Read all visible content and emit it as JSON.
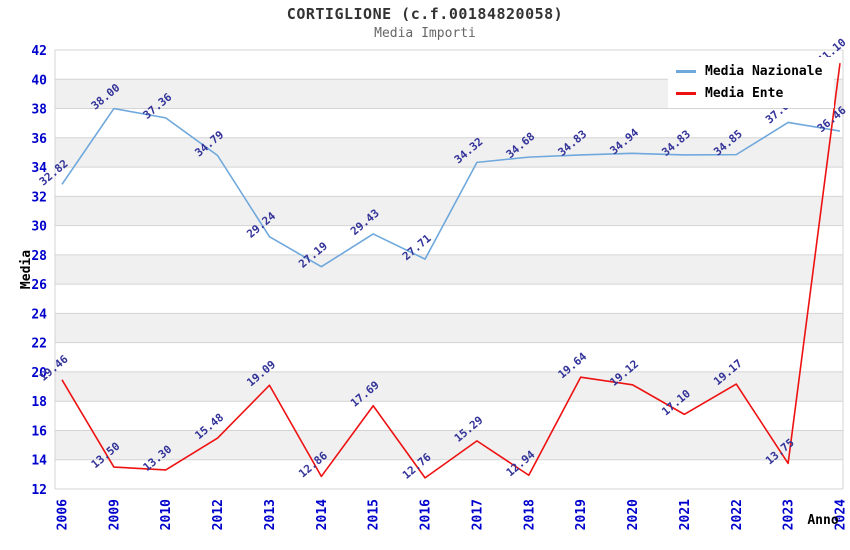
{
  "title": "CORTIGLIONE (c.f.00184820058)",
  "subtitle": "Media Importi",
  "chart_data": {
    "type": "line",
    "title": "CORTIGLIONE (c.f.00184820058)",
    "subtitle": "Media Importi",
    "xlabel": "Anno",
    "ylabel": "Media",
    "ylim": [
      12,
      42
    ],
    "ytick_step": 2,
    "yticks": [
      12,
      14,
      16,
      18,
      20,
      22,
      24,
      26,
      28,
      30,
      32,
      34,
      36,
      38,
      40,
      42
    ],
    "grid": true,
    "legend_position": "top-right",
    "categories": [
      "2006",
      "2009",
      "2010",
      "2012",
      "2013",
      "2014",
      "2015",
      "2016",
      "2017",
      "2018",
      "2019",
      "2020",
      "2021",
      "2022",
      "2023",
      "2024"
    ],
    "series": [
      {
        "name": "Media Nazionale",
        "color": "#6fa8dc",
        "values": [
          32.82,
          38.0,
          37.36,
          34.79,
          29.24,
          27.19,
          29.43,
          27.71,
          34.32,
          34.68,
          34.83,
          34.94,
          34.83,
          34.85,
          37.05,
          36.46
        ]
      },
      {
        "name": "Media Ente",
        "color": "#ee1111",
        "values": [
          19.46,
          13.5,
          13.3,
          15.48,
          19.09,
          12.86,
          17.69,
          12.76,
          15.29,
          12.94,
          19.64,
          19.12,
          17.1,
          19.17,
          13.75,
          41.1
        ]
      }
    ],
    "colors": {
      "tick_label": "#0000cc",
      "data_label": "#333399",
      "grid_line": "#d4d4d4",
      "band_fill": "#f0f0f0",
      "title": "#333333",
      "subtitle": "#666666"
    }
  }
}
